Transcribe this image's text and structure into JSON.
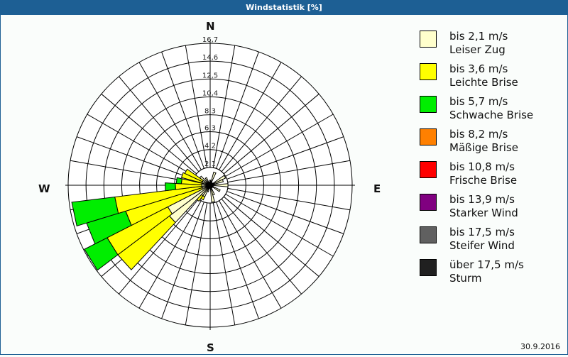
{
  "window": {
    "title": "Windstatistik [%]"
  },
  "compass": {
    "n": "N",
    "e": "E",
    "s": "S",
    "w": "W"
  },
  "footer": {
    "date": "30.9.2016"
  },
  "legend": [
    {
      "label": "bis 2,1 m/s",
      "sublabel": "Leiser Zug",
      "color": "#ffffcc"
    },
    {
      "label": "bis 3,6 m/s",
      "sublabel": "Leichte Brise",
      "color": "#ffff00"
    },
    {
      "label": "bis 5,7 m/s",
      "sublabel": "Schwache Brise",
      "color": "#00ee00"
    },
    {
      "label": "bis 8,2 m/s",
      "sublabel": "Mäßige Brise",
      "color": "#ff8000"
    },
    {
      "label": "bis 10,8 m/s",
      "sublabel": "Frische Brise",
      "color": "#ff0000"
    },
    {
      "label": "bis 13,9 m/s",
      "sublabel": "Starker Wind",
      "color": "#800080"
    },
    {
      "label": "bis 17,5 m/s",
      "sublabel": "Steifer Wind",
      "color": "#606060"
    },
    {
      "label": "über 17,5 m/s",
      "sublabel": "Sturm",
      "color": "#202020"
    }
  ],
  "chart_data": {
    "type": "wind_rose",
    "title": "Windstatistik [%]",
    "date": "30.9.2016",
    "rmax": 16.7,
    "ring_labels": [
      "2,1",
      "4,2",
      "6,3",
      "8,3",
      "10,4",
      "12,5",
      "14,6",
      "16,7"
    ],
    "ring_values": [
      2.1,
      4.2,
      6.3,
      8.3,
      10.4,
      12.5,
      14.6,
      16.7
    ],
    "sector_width_deg": 10,
    "categories": [
      "bis 2,1 m/s",
      "bis 3,6 m/s",
      "bis 5,7 m/s",
      "bis 8,2 m/s",
      "bis 10,8 m/s",
      "bis 13,9 m/s",
      "bis 17,5 m/s",
      "über 17,5 m/s"
    ],
    "sectors_cumulative": [
      {
        "dir": 0,
        "cum": [
          0.6
        ]
      },
      {
        "dir": 20,
        "cum": [
          1.6
        ]
      },
      {
        "dir": 60,
        "cum": [
          2.0
        ]
      },
      {
        "dir": 70,
        "cum": [
          1.6
        ]
      },
      {
        "dir": 90,
        "cum": [
          2.1
        ]
      },
      {
        "dir": 120,
        "cum": [
          1.3
        ]
      },
      {
        "dir": 160,
        "cum": [
          1.2
        ]
      },
      {
        "dir": 170,
        "cum": [
          2.0
        ]
      },
      {
        "dir": 200,
        "cum": [
          0.8
        ]
      },
      {
        "dir": 210,
        "cum": [
          1.5,
          1.9
        ]
      },
      {
        "dir": 220,
        "cum": [
          1.5,
          2.3
        ]
      },
      {
        "dir": 228,
        "cum": [
          6.0,
          13.6
        ]
      },
      {
        "dir": 238,
        "cum": [
          5.6,
          13.6,
          16.6
        ]
      },
      {
        "dir": 248,
        "cum": [
          1.0,
          10.4,
          15.2
        ]
      },
      {
        "dir": 258,
        "cum": [
          1.0,
          11.3,
          16.4
        ]
      },
      {
        "dir": 268,
        "cum": [
          1.0,
          4.1,
          5.3
        ]
      },
      {
        "dir": 278,
        "cum": [
          1.0,
          3.4,
          4.0
        ]
      },
      {
        "dir": 290,
        "cum": [
          1.0,
          3.5
        ]
      },
      {
        "dir": 300,
        "cum": [
          1.0,
          3.3
        ]
      },
      {
        "dir": 310,
        "cum": [
          1.5
        ]
      },
      {
        "dir": 330,
        "cum": [
          1.0
        ]
      }
    ]
  }
}
